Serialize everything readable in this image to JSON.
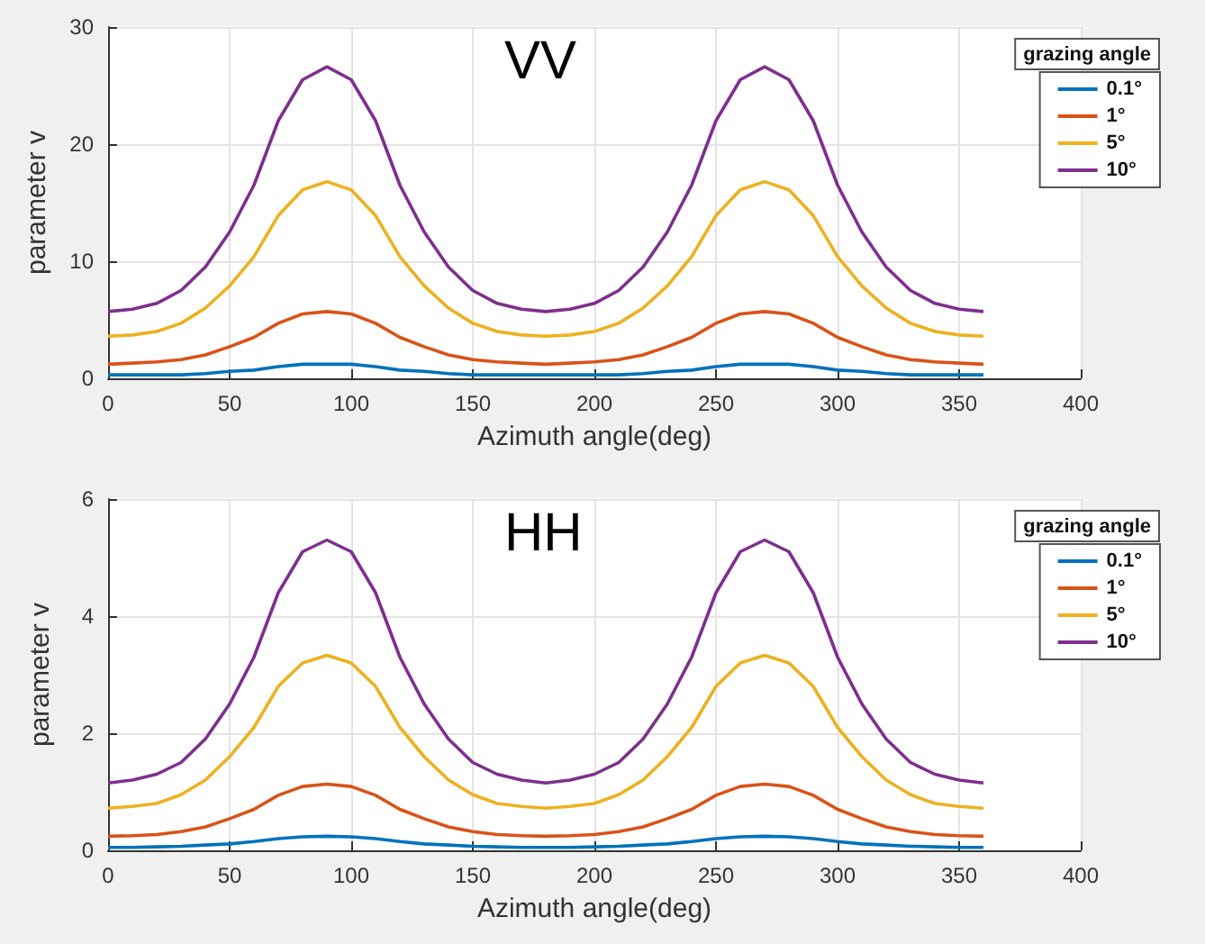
{
  "chart_data": [
    {
      "type": "line",
      "title": "VV",
      "xlabel": "Azimuth angle(deg)",
      "ylabel": "parameter v",
      "legend_title": "grazing angle",
      "x": [
        0,
        10,
        20,
        30,
        40,
        50,
        60,
        70,
        80,
        90,
        100,
        110,
        120,
        130,
        140,
        150,
        160,
        170,
        180,
        190,
        200,
        210,
        220,
        230,
        240,
        250,
        260,
        270,
        280,
        290,
        300,
        310,
        320,
        330,
        340,
        350,
        360
      ],
      "series": [
        {
          "name": "0.1°",
          "color": "#0072bd",
          "values": [
            0.3,
            0.3,
            0.3,
            0.3,
            0.4,
            0.6,
            0.7,
            1.0,
            1.2,
            1.2,
            1.2,
            1.0,
            0.7,
            0.6,
            0.4,
            0.3,
            0.3,
            0.3,
            0.3,
            0.3,
            0.3,
            0.3,
            0.4,
            0.6,
            0.7,
            1.0,
            1.2,
            1.2,
            1.2,
            1.0,
            0.7,
            0.6,
            0.4,
            0.3,
            0.3,
            0.3,
            0.3
          ]
        },
        {
          "name": "1°",
          "color": "#d95319",
          "values": [
            1.2,
            1.3,
            1.4,
            1.6,
            2.0,
            2.7,
            3.5,
            4.7,
            5.5,
            5.7,
            5.5,
            4.7,
            3.5,
            2.7,
            2.0,
            1.6,
            1.4,
            1.3,
            1.2,
            1.3,
            1.4,
            1.6,
            2.0,
            2.7,
            3.5,
            4.7,
            5.5,
            5.7,
            5.5,
            4.7,
            3.5,
            2.7,
            2.0,
            1.6,
            1.4,
            1.3,
            1.2
          ]
        },
        {
          "name": "5°",
          "color": "#edb120",
          "values": [
            3.6,
            3.7,
            4.0,
            4.7,
            6.0,
            7.9,
            10.4,
            13.9,
            16.1,
            16.8,
            16.1,
            13.9,
            10.4,
            7.9,
            6.0,
            4.7,
            4.0,
            3.7,
            3.6,
            3.7,
            4.0,
            4.7,
            6.0,
            7.9,
            10.4,
            13.9,
            16.1,
            16.8,
            16.1,
            13.9,
            10.4,
            7.9,
            6.0,
            4.7,
            4.0,
            3.7,
            3.6
          ]
        },
        {
          "name": "10°",
          "color": "#7e2f8e",
          "values": [
            5.7,
            5.9,
            6.4,
            7.5,
            9.5,
            12.5,
            16.5,
            22,
            25.5,
            26.6,
            25.5,
            22,
            16.5,
            12.5,
            9.5,
            7.5,
            6.4,
            5.9,
            5.7,
            5.9,
            6.4,
            7.5,
            9.5,
            12.5,
            16.5,
            22,
            25.5,
            26.6,
            25.5,
            22,
            16.5,
            12.5,
            9.5,
            7.5,
            6.4,
            5.9,
            5.7
          ]
        }
      ],
      "xlim": [
        0,
        400
      ],
      "xticks": [
        0,
        50,
        100,
        150,
        200,
        250,
        300,
        350,
        400
      ],
      "ylim": [
        0,
        30
      ],
      "yticks": [
        0,
        10,
        20,
        30
      ],
      "grid": true,
      "legend": "top right",
      "marker": "none",
      "line_style": "solid"
    },
    {
      "type": "line",
      "title": "HH",
      "xlabel": "Azimuth angle(deg)",
      "ylabel": "parameter v",
      "legend_title": "grazing angle",
      "x": [
        0,
        10,
        20,
        30,
        40,
        50,
        60,
        70,
        80,
        90,
        100,
        110,
        120,
        130,
        140,
        150,
        160,
        170,
        180,
        190,
        200,
        210,
        220,
        230,
        240,
        250,
        260,
        270,
        280,
        290,
        300,
        310,
        320,
        330,
        340,
        350,
        360
      ],
      "series": [
        {
          "name": "0.1°",
          "color": "#0072bd",
          "values": [
            0.05,
            0.05,
            0.06,
            0.07,
            0.09,
            0.11,
            0.15,
            0.2,
            0.23,
            0.24,
            0.23,
            0.2,
            0.15,
            0.11,
            0.09,
            0.07,
            0.06,
            0.05,
            0.05,
            0.05,
            0.06,
            0.07,
            0.09,
            0.11,
            0.15,
            0.2,
            0.23,
            0.24,
            0.23,
            0.2,
            0.15,
            0.11,
            0.09,
            0.07,
            0.06,
            0.05,
            0.05
          ]
        },
        {
          "name": "1°",
          "color": "#d95319",
          "values": [
            0.24,
            0.25,
            0.27,
            0.32,
            0.4,
            0.54,
            0.7,
            0.94,
            1.09,
            1.13,
            1.09,
            0.94,
            0.7,
            0.54,
            0.4,
            0.32,
            0.27,
            0.25,
            0.24,
            0.25,
            0.27,
            0.32,
            0.4,
            0.54,
            0.7,
            0.94,
            1.09,
            1.13,
            1.09,
            0.94,
            0.7,
            0.54,
            0.4,
            0.32,
            0.27,
            0.25,
            0.24
          ]
        },
        {
          "name": "5°",
          "color": "#edb120",
          "values": [
            0.72,
            0.75,
            0.8,
            0.95,
            1.2,
            1.6,
            2.1,
            2.8,
            3.2,
            3.33,
            3.2,
            2.8,
            2.1,
            1.6,
            1.2,
            0.95,
            0.8,
            0.75,
            0.72,
            0.75,
            0.8,
            0.95,
            1.2,
            1.6,
            2.1,
            2.8,
            3.2,
            3.33,
            3.2,
            2.8,
            2.1,
            1.6,
            1.2,
            0.95,
            0.8,
            0.75,
            0.72
          ]
        },
        {
          "name": "10°",
          "color": "#7e2f8e",
          "values": [
            1.15,
            1.2,
            1.3,
            1.5,
            1.9,
            2.5,
            3.3,
            4.4,
            5.1,
            5.3,
            5.1,
            4.4,
            3.3,
            2.5,
            1.9,
            1.5,
            1.3,
            1.2,
            1.15,
            1.2,
            1.3,
            1.5,
            1.9,
            2.5,
            3.3,
            4.4,
            5.1,
            5.3,
            5.1,
            4.4,
            3.3,
            2.5,
            1.9,
            1.5,
            1.3,
            1.2,
            1.15
          ]
        }
      ],
      "xlim": [
        0,
        400
      ],
      "xticks": [
        0,
        50,
        100,
        150,
        200,
        250,
        300,
        350,
        400
      ],
      "ylim": [
        0,
        6
      ],
      "yticks": [
        0,
        2,
        4,
        6
      ],
      "grid": true,
      "legend": "top right",
      "marker": "none",
      "line_style": "solid"
    }
  ]
}
